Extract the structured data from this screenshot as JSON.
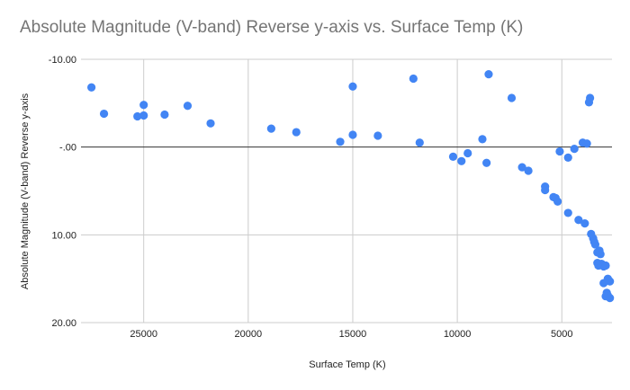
{
  "chart_data": {
    "type": "scatter",
    "title": "Absolute Magnitude (V-band) Reverse y-axis vs. Surface Temp (K)",
    "xlabel": "Surface Temp (K)",
    "ylabel": "Absolute Magnitude (V-band) Reverse y-axis",
    "x_reversed": true,
    "y_reversed": true,
    "xlim": [
      28000,
      2600
    ],
    "ylim": [
      -10,
      20
    ],
    "x_ticks": [
      25000,
      20000,
      15000,
      10000,
      5000
    ],
    "x_tick_labels": [
      "25000",
      "20000",
      "15000",
      "10000",
      "5000"
    ],
    "y_ticks": [
      -10,
      0,
      10,
      20
    ],
    "y_tick_labels": [
      "-10.00",
      "-.00",
      "10.00",
      "20.00"
    ],
    "grid": true,
    "zero_line": 0,
    "point_color": "#4285f4",
    "points": [
      {
        "x": 27500,
        "y": -6.8
      },
      {
        "x": 26900,
        "y": -3.8
      },
      {
        "x": 25300,
        "y": -3.5
      },
      {
        "x": 25000,
        "y": -4.8
      },
      {
        "x": 25000,
        "y": -3.6
      },
      {
        "x": 24000,
        "y": -3.7
      },
      {
        "x": 22900,
        "y": -4.7
      },
      {
        "x": 21800,
        "y": -2.7
      },
      {
        "x": 18900,
        "y": -2.1
      },
      {
        "x": 17700,
        "y": -1.7
      },
      {
        "x": 15600,
        "y": -0.6
      },
      {
        "x": 15000,
        "y": -6.9
      },
      {
        "x": 15000,
        "y": -1.4
      },
      {
        "x": 13800,
        "y": -1.3
      },
      {
        "x": 12100,
        "y": -7.8
      },
      {
        "x": 11800,
        "y": -0.5
      },
      {
        "x": 10200,
        "y": 1.1
      },
      {
        "x": 9800,
        "y": 1.6
      },
      {
        "x": 9500,
        "y": 0.7
      },
      {
        "x": 8800,
        "y": -0.9
      },
      {
        "x": 8600,
        "y": 1.8
      },
      {
        "x": 8500,
        "y": -8.3
      },
      {
        "x": 7400,
        "y": -5.6
      },
      {
        "x": 6900,
        "y": 2.3
      },
      {
        "x": 6600,
        "y": 2.7
      },
      {
        "x": 5800,
        "y": 4.5
      },
      {
        "x": 5800,
        "y": 4.9
      },
      {
        "x": 5400,
        "y": 5.7
      },
      {
        "x": 5300,
        "y": 5.8
      },
      {
        "x": 5200,
        "y": 6.2
      },
      {
        "x": 5100,
        "y": 0.5
      },
      {
        "x": 4700,
        "y": 1.2
      },
      {
        "x": 4700,
        "y": 7.5
      },
      {
        "x": 4400,
        "y": 0.2
      },
      {
        "x": 4200,
        "y": 8.3
      },
      {
        "x": 4000,
        "y": -0.5
      },
      {
        "x": 3900,
        "y": 8.7
      },
      {
        "x": 3800,
        "y": -0.4
      },
      {
        "x": 3700,
        "y": -5.1
      },
      {
        "x": 3650,
        "y": -5.6
      },
      {
        "x": 3600,
        "y": 9.9
      },
      {
        "x": 3500,
        "y": 10.4
      },
      {
        "x": 3450,
        "y": 10.8
      },
      {
        "x": 3400,
        "y": 11.1
      },
      {
        "x": 3300,
        "y": 12.0
      },
      {
        "x": 3200,
        "y": 11.8
      },
      {
        "x": 3150,
        "y": 12.2
      },
      {
        "x": 3300,
        "y": 13.2
      },
      {
        "x": 3250,
        "y": 13.5
      },
      {
        "x": 3100,
        "y": 13.3
      },
      {
        "x": 3000,
        "y": 13.6
      },
      {
        "x": 2900,
        "y": 13.5
      },
      {
        "x": 2800,
        "y": 15.0
      },
      {
        "x": 2700,
        "y": 15.3
      },
      {
        "x": 3000,
        "y": 15.5
      },
      {
        "x": 2850,
        "y": 16.6
      },
      {
        "x": 2800,
        "y": 16.9
      },
      {
        "x": 2900,
        "y": 17.0
      },
      {
        "x": 2700,
        "y": 17.2
      }
    ]
  }
}
